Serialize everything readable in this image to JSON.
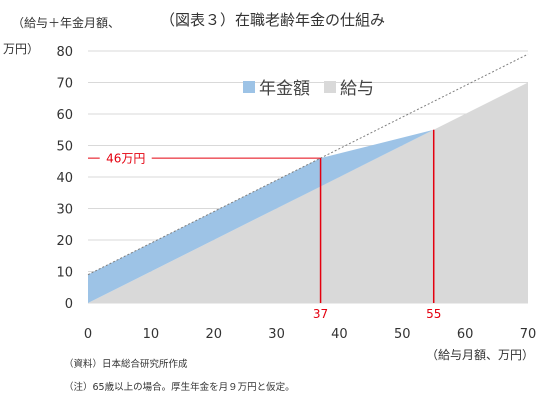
{
  "title": "（図表３）在職老齢年金の仕組み",
  "ylabel_lines": [
    "（給与＋年金月額、",
    "万円）"
  ],
  "xlabel": "（給与月額、万円）",
  "source": "（資料）日本総合研究所作成",
  "note": "（注）65歳以上の場合。厚生年金を月９万円と仮定。",
  "colors": {
    "pension": "#9dc3e6",
    "salary": "#d9d9d9",
    "marker": "#e4000f",
    "dotted": "#7f7f7f",
    "axis_text": "#333333",
    "grid": "#d9d9d9"
  },
  "chart_data": {
    "type": "area",
    "xlim": [
      0,
      70
    ],
    "ylim": [
      0,
      80
    ],
    "xticks": [
      "0",
      "10",
      "20",
      "30",
      "40",
      "50",
      "60",
      "70"
    ],
    "yticks": [
      "0",
      "10",
      "20",
      "30",
      "40",
      "50",
      "60",
      "70",
      "80"
    ],
    "grid": true,
    "legend_position": "top-center",
    "series": [
      {
        "name": "年金額",
        "color": "#9dc3e6",
        "x": [
          0,
          37,
          55
        ],
        "upper": [
          9,
          46,
          55
        ],
        "lower": [
          0,
          37,
          55
        ]
      },
      {
        "name": "給与",
        "color": "#d9d9d9",
        "x": [
          0,
          70
        ],
        "values": [
          0,
          70
        ]
      }
    ],
    "reference_line": {
      "style": "dotted",
      "x": [
        0,
        70
      ],
      "y": [
        9,
        79
      ]
    },
    "annotations": [
      {
        "type": "hline",
        "y": 46,
        "x_end": 37,
        "label": "46万円"
      },
      {
        "type": "vline",
        "x": 37,
        "label": "37"
      },
      {
        "type": "vline",
        "x": 55,
        "label": "55"
      }
    ]
  }
}
